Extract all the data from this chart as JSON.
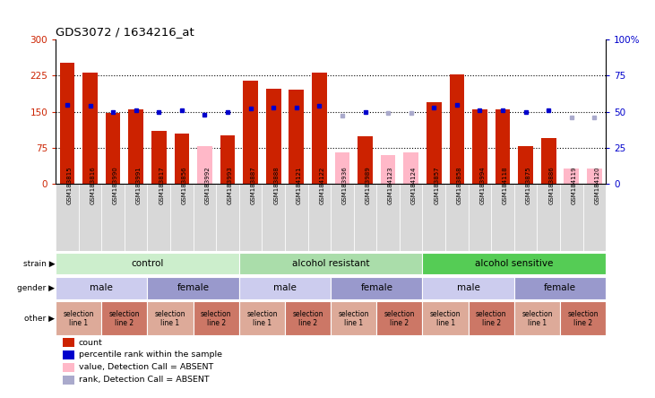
{
  "title": "GDS3072 / 1634216_at",
  "samples": [
    "GSM183815",
    "GSM183816",
    "GSM183990",
    "GSM183991",
    "GSM183817",
    "GSM183856",
    "GSM183992",
    "GSM183993",
    "GSM183887",
    "GSM183888",
    "GSM184121",
    "GSM184122",
    "GSM183936",
    "GSM183989",
    "GSM184123",
    "GSM184124",
    "GSM183857",
    "GSM183858",
    "GSM183994",
    "GSM184118",
    "GSM183875",
    "GSM183886",
    "GSM184119",
    "GSM184120"
  ],
  "counts": [
    252,
    232,
    148,
    155,
    110,
    105,
    78,
    100,
    215,
    197,
    195,
    232,
    65,
    98,
    60,
    65,
    170,
    228,
    155,
    155,
    78,
    95,
    32,
    32
  ],
  "absent_bar": [
    false,
    false,
    false,
    false,
    false,
    false,
    true,
    false,
    false,
    false,
    false,
    false,
    true,
    false,
    true,
    true,
    false,
    false,
    false,
    false,
    false,
    false,
    true,
    true
  ],
  "percentile": [
    55,
    54,
    50,
    51,
    50,
    51,
    48,
    50,
    52,
    53,
    53,
    54,
    47,
    50,
    49,
    49,
    53,
    55,
    51,
    51,
    50,
    51,
    46,
    46
  ],
  "absent_pct": [
    false,
    false,
    false,
    false,
    false,
    false,
    false,
    false,
    false,
    false,
    false,
    false,
    true,
    false,
    true,
    true,
    false,
    false,
    false,
    false,
    false,
    false,
    true,
    true
  ],
  "red_color": "#cc2200",
  "pink_color": "#ffb8c8",
  "blue_color": "#0000cc",
  "light_blue_color": "#aaaacc",
  "main_bg": "#ffffff",
  "tick_box_bg": "#d8d8d8",
  "strain_groups": [
    {
      "label": "control",
      "start": 0,
      "end": 8,
      "color": "#cceecc"
    },
    {
      "label": "alcohol resistant",
      "start": 8,
      "end": 16,
      "color": "#aaddaa"
    },
    {
      "label": "alcohol sensitive",
      "start": 16,
      "end": 24,
      "color": "#55cc55"
    }
  ],
  "gender_groups": [
    {
      "label": "male",
      "start": 0,
      "end": 4,
      "color": "#ccccee"
    },
    {
      "label": "female",
      "start": 4,
      "end": 8,
      "color": "#9999cc"
    },
    {
      "label": "male",
      "start": 8,
      "end": 12,
      "color": "#ccccee"
    },
    {
      "label": "female",
      "start": 12,
      "end": 16,
      "color": "#9999cc"
    },
    {
      "label": "male",
      "start": 16,
      "end": 20,
      "color": "#ccccee"
    },
    {
      "label": "female",
      "start": 20,
      "end": 24,
      "color": "#9999cc"
    }
  ],
  "other_groups": [
    {
      "label": "selection\nline 1",
      "start": 0,
      "end": 2,
      "color": "#ddaa99"
    },
    {
      "label": "selection\nline 2",
      "start": 2,
      "end": 4,
      "color": "#cc7766"
    },
    {
      "label": "selection\nline 1",
      "start": 4,
      "end": 6,
      "color": "#ddaa99"
    },
    {
      "label": "selection\nline 2",
      "start": 6,
      "end": 8,
      "color": "#cc7766"
    },
    {
      "label": "selection\nline 1",
      "start": 8,
      "end": 10,
      "color": "#ddaa99"
    },
    {
      "label": "selection\nline 2",
      "start": 10,
      "end": 12,
      "color": "#cc7766"
    },
    {
      "label": "selection\nline 1",
      "start": 12,
      "end": 14,
      "color": "#ddaa99"
    },
    {
      "label": "selection\nline 2",
      "start": 14,
      "end": 16,
      "color": "#cc7766"
    },
    {
      "label": "selection\nline 1",
      "start": 16,
      "end": 18,
      "color": "#ddaa99"
    },
    {
      "label": "selection\nline 2",
      "start": 18,
      "end": 20,
      "color": "#cc7766"
    },
    {
      "label": "selection\nline 1",
      "start": 20,
      "end": 22,
      "color": "#ddaa99"
    },
    {
      "label": "selection\nline 2",
      "start": 22,
      "end": 24,
      "color": "#cc7766"
    }
  ],
  "legend_items": [
    {
      "label": "count",
      "color": "#cc2200"
    },
    {
      "label": "percentile rank within the sample",
      "color": "#0000cc"
    },
    {
      "label": "value, Detection Call = ABSENT",
      "color": "#ffb8c8"
    },
    {
      "label": "rank, Detection Call = ABSENT",
      "color": "#aaaacc"
    }
  ],
  "left_labels": [
    {
      "text": "strain",
      "row": "strain"
    },
    {
      "text": "gender",
      "row": "gender"
    },
    {
      "text": "other",
      "row": "other"
    }
  ]
}
